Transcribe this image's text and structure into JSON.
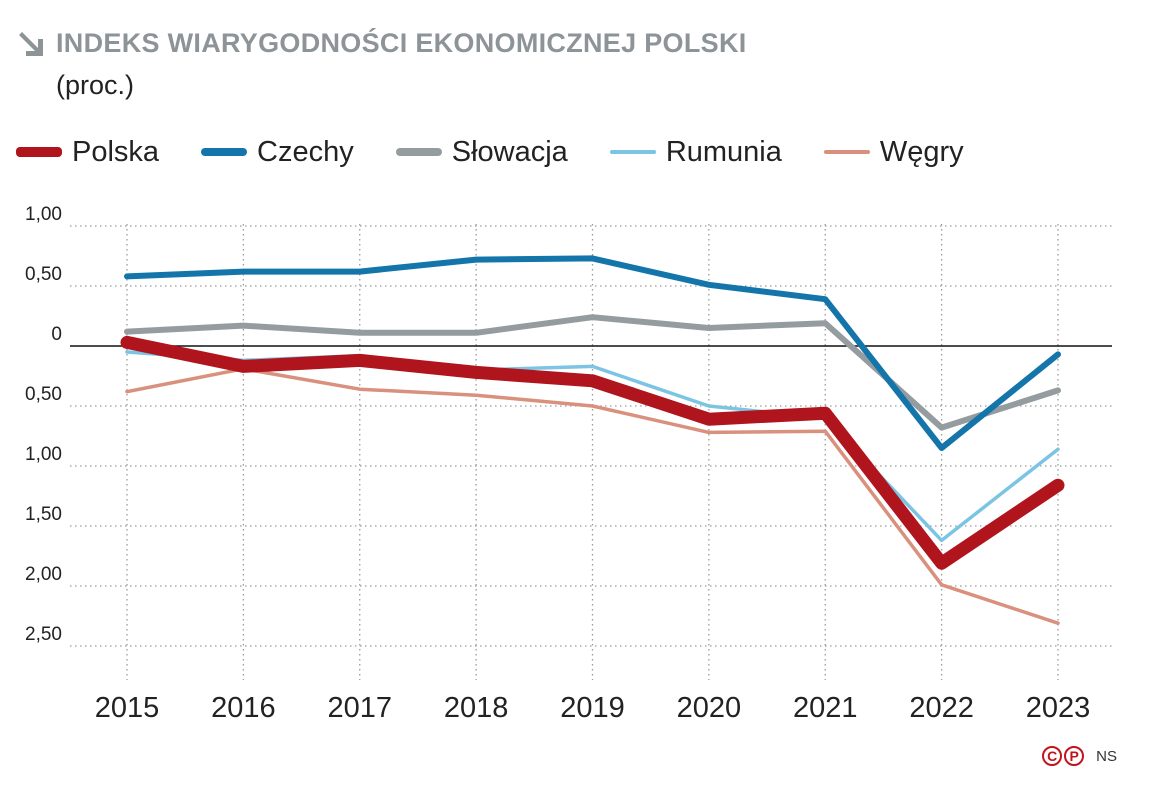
{
  "title": "INDEKS WIARYGODNOŚCI EKONOMICZNEJ POLSKI",
  "subtitle": "(proc.)",
  "footer": {
    "logo_c": "C",
    "logo_p": "P",
    "author": "NS"
  },
  "chart_data": {
    "type": "line",
    "title": "INDEKS WIARYGODNOŚCI EKONOMICZNEJ POLSKI",
    "subtitle": "(proc.)",
    "x": [
      2015,
      2016,
      2017,
      2018,
      2019,
      2020,
      2021,
      2022,
      2023
    ],
    "x_tick_labels": [
      "2015",
      "2016",
      "2017",
      "2018",
      "2019",
      "2020",
      "2021",
      "2022",
      "2023"
    ],
    "ylim": [
      -2.5,
      1.0
    ],
    "y_ticks": [
      1.0,
      0.5,
      0,
      -0.5,
      -1.0,
      -1.5,
      -2.0,
      -2.5
    ],
    "y_tick_labels": [
      "1,00",
      "0,50",
      "0",
      "0,50",
      "1,00",
      "1,50",
      "2,00",
      "2,50"
    ],
    "grid": true,
    "legend_position": "top-left",
    "series": [
      {
        "name": "Polska",
        "color": "#b0141c",
        "values": [
          0.03,
          -0.17,
          -0.12,
          -0.22,
          -0.29,
          -0.61,
          -0.56,
          -1.81,
          -1.16
        ]
      },
      {
        "name": "Czechy",
        "color": "#1475aa",
        "values": [
          0.58,
          0.62,
          0.62,
          0.72,
          0.73,
          0.51,
          0.39,
          -0.85,
          -0.07
        ]
      },
      {
        "name": "Słowacja",
        "color": "#959ca0",
        "values": [
          0.12,
          0.17,
          0.11,
          0.11,
          0.24,
          0.15,
          0.19,
          -0.68,
          -0.37
        ]
      },
      {
        "name": "Rumunia",
        "color": "#7cc4e4",
        "values": [
          -0.05,
          -0.12,
          -0.08,
          -0.2,
          -0.17,
          -0.5,
          -0.6,
          -1.62,
          -0.86
        ]
      },
      {
        "name": "Węgry",
        "color": "#d9907c",
        "values": [
          -0.38,
          -0.19,
          -0.36,
          -0.41,
          -0.5,
          -0.72,
          -0.71,
          -1.99,
          -2.31
        ]
      }
    ]
  }
}
